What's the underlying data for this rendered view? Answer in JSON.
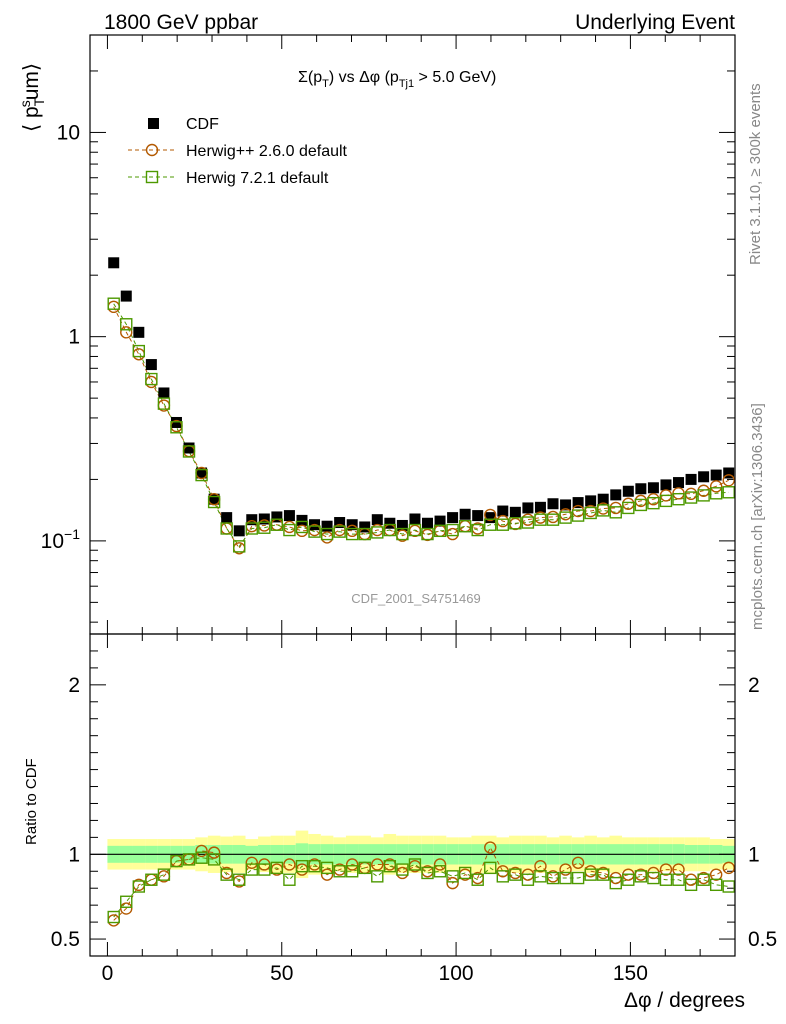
{
  "header": {
    "left": "1800 GeV ppbar",
    "right": "Underlying Event",
    "plot_title_main": "Σ(p",
    "plot_title_sub1": "T",
    "plot_title_mid": ") vs Δφ (p",
    "plot_title_sub2": "Tj1",
    "plot_title_end": " > 5.0 GeV)",
    "side_top": "Rivet 3.1.10, ≥ 300k events",
    "side_bottom": "mcplots.cern.ch [arXiv:1306.3436]",
    "watermark": "CDF_2001_S4751469"
  },
  "axes": {
    "top_ylabel": "⟨ p",
    "top_ylabel_sub": "T",
    "top_ylabel_sup": "s",
    "top_ylabel_end": "um⟩",
    "bottom_ylabel": "Ratio to CDF",
    "xlabel": "Δφ / degrees"
  },
  "chart_data": {
    "type": "scatter",
    "top": {
      "yscale": "log",
      "ylim": [
        0.035,
        30
      ],
      "yticks": [
        {
          "value": 0.1,
          "label": "10",
          "sup": "−1"
        },
        {
          "value": 1,
          "label": "1",
          "sup": ""
        },
        {
          "value": 10,
          "label": "10",
          "sup": ""
        }
      ]
    },
    "bottom": {
      "ylim": [
        0.4,
        2.3
      ],
      "yticks": [
        {
          "value": 0.5,
          "label": "0.5"
        },
        {
          "value": 1,
          "label": "1"
        },
        {
          "value": 2,
          "label": "2"
        }
      ]
    },
    "xlim": [
      -5,
      180
    ],
    "xticks": [
      {
        "value": 0,
        "label": "0"
      },
      {
        "value": 50,
        "label": "50"
      },
      {
        "value": 100,
        "label": "100"
      },
      {
        "value": 150,
        "label": "150"
      }
    ],
    "x": [
      1.8,
      5.4,
      9.0,
      12.6,
      16.2,
      19.8,
      23.4,
      27.0,
      30.6,
      34.2,
      37.8,
      41.4,
      45.0,
      48.6,
      52.2,
      55.8,
      59.4,
      63.0,
      66.6,
      70.2,
      73.8,
      77.4,
      81.0,
      84.6,
      88.2,
      91.8,
      95.4,
      99.0,
      102.6,
      106.2,
      109.8,
      113.4,
      117.0,
      120.6,
      124.2,
      127.8,
      131.4,
      135.0,
      138.6,
      142.2,
      145.8,
      149.4,
      153.0,
      156.6,
      160.2,
      163.8,
      167.4,
      171.0,
      174.6,
      178.2
    ],
    "series": [
      {
        "name": "CDF",
        "color": "#000000",
        "marker": "filled-square",
        "values": [
          2.3,
          1.58,
          1.05,
          0.73,
          0.53,
          0.38,
          0.285,
          0.215,
          0.16,
          0.13,
          0.112,
          0.127,
          0.128,
          0.131,
          0.133,
          0.126,
          0.12,
          0.118,
          0.123,
          0.12,
          0.117,
          0.127,
          0.122,
          0.119,
          0.128,
          0.122,
          0.125,
          0.13,
          0.135,
          0.133,
          0.13,
          0.14,
          0.138,
          0.145,
          0.146,
          0.152,
          0.15,
          0.154,
          0.157,
          0.16,
          0.168,
          0.175,
          0.18,
          0.182,
          0.188,
          0.193,
          0.2,
          0.206,
          0.21,
          0.215
        ]
      },
      {
        "name": "Herwig++ 2.6.0 default",
        "color": "#b35900",
        "marker": "open-circle",
        "values": [
          1.4,
          1.05,
          0.82,
          0.6,
          0.46,
          0.365,
          0.275,
          0.215,
          0.16,
          0.115,
          0.092,
          0.118,
          0.119,
          0.12,
          0.117,
          0.112,
          0.113,
          0.104,
          0.113,
          0.112,
          0.108,
          0.113,
          0.113,
          0.106,
          0.112,
          0.107,
          0.112,
          0.108,
          0.118,
          0.115,
          0.134,
          0.125,
          0.121,
          0.127,
          0.13,
          0.131,
          0.135,
          0.14,
          0.14,
          0.144,
          0.145,
          0.152,
          0.157,
          0.16,
          0.167,
          0.171,
          0.17,
          0.176,
          0.185,
          0.198
        ]
      },
      {
        "name": "Herwig 7.2.1 default",
        "color": "#4d9900",
        "marker": "open-square",
        "values": [
          1.45,
          1.15,
          0.85,
          0.62,
          0.47,
          0.36,
          0.274,
          0.21,
          0.155,
          0.115,
          0.094,
          0.115,
          0.116,
          0.12,
          0.113,
          0.117,
          0.111,
          0.108,
          0.111,
          0.108,
          0.108,
          0.11,
          0.113,
          0.108,
          0.113,
          0.108,
          0.112,
          0.113,
          0.118,
          0.113,
          0.12,
          0.12,
          0.122,
          0.123,
          0.127,
          0.127,
          0.13,
          0.133,
          0.137,
          0.141,
          0.138,
          0.145,
          0.15,
          0.153,
          0.157,
          0.16,
          0.163,
          0.167,
          0.171,
          0.173
        ]
      }
    ],
    "ratio": [
      {
        "name": "Herwig++ 2.6.0 default",
        "values": [
          0.61,
          0.68,
          0.82,
          0.85,
          0.87,
          0.96,
          0.97,
          1.02,
          1.01,
          0.89,
          0.84,
          0.95,
          0.94,
          0.91,
          0.94,
          0.91,
          0.94,
          0.88,
          0.91,
          0.94,
          0.92,
          0.94,
          0.94,
          0.89,
          0.93,
          0.9,
          0.94,
          0.83,
          0.88,
          0.86,
          1.04,
          0.9,
          0.89,
          0.88,
          0.93,
          0.87,
          0.91,
          0.95,
          0.9,
          0.89,
          0.86,
          0.88,
          0.88,
          0.89,
          0.91,
          0.91,
          0.85,
          0.86,
          0.88,
          0.92
        ]
      },
      {
        "name": "Herwig 7.2.1 default",
        "values": [
          0.63,
          0.72,
          0.81,
          0.85,
          0.88,
          0.96,
          0.97,
          0.98,
          0.97,
          0.88,
          0.85,
          0.91,
          0.91,
          0.92,
          0.85,
          0.93,
          0.93,
          0.92,
          0.9,
          0.9,
          0.92,
          0.87,
          0.93,
          0.91,
          0.94,
          0.89,
          0.9,
          0.87,
          0.89,
          0.85,
          0.92,
          0.87,
          0.88,
          0.85,
          0.87,
          0.86,
          0.86,
          0.86,
          0.88,
          0.88,
          0.83,
          0.85,
          0.87,
          0.86,
          0.85,
          0.85,
          0.82,
          0.85,
          0.82,
          0.81
        ]
      }
    ],
    "band_stat": [
      0.05,
      0.05,
      0.05,
      0.05,
      0.05,
      0.05,
      0.05,
      0.055,
      0.055,
      0.055,
      0.055,
      0.05,
      0.055,
      0.055,
      0.055,
      0.065,
      0.06,
      0.06,
      0.06,
      0.06,
      0.06,
      0.06,
      0.06,
      0.06,
      0.06,
      0.06,
      0.06,
      0.06,
      0.06,
      0.06,
      0.06,
      0.06,
      0.06,
      0.06,
      0.06,
      0.06,
      0.06,
      0.06,
      0.06,
      0.06,
      0.06,
      0.06,
      0.06,
      0.06,
      0.06,
      0.06,
      0.055,
      0.055,
      0.055,
      0.05
    ],
    "band_total": [
      0.09,
      0.09,
      0.09,
      0.09,
      0.09,
      0.09,
      0.09,
      0.1,
      0.11,
      0.105,
      0.11,
      0.09,
      0.105,
      0.11,
      0.11,
      0.14,
      0.12,
      0.11,
      0.1,
      0.11,
      0.11,
      0.1,
      0.12,
      0.11,
      0.11,
      0.11,
      0.11,
      0.1,
      0.1,
      0.11,
      0.11,
      0.1,
      0.11,
      0.11,
      0.11,
      0.1,
      0.11,
      0.1,
      0.11,
      0.1,
      0.11,
      0.1,
      0.1,
      0.1,
      0.1,
      0.1,
      0.1,
      0.1,
      0.09,
      0.09
    ]
  }
}
